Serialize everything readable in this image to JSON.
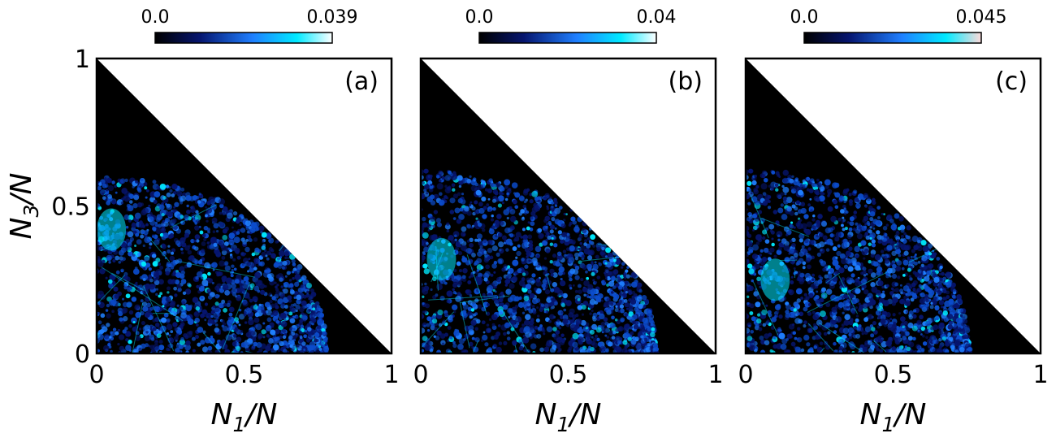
{
  "chart_data": [
    {
      "type": "heatmap",
      "panel_label": "(a)",
      "colorbar": {
        "min_label": "0.0",
        "max_label": "0.039",
        "min": 0.0,
        "max": 0.039,
        "colors": [
          "#000000",
          "#06156e",
          "#1f7fff",
          "#00eaff",
          "#ffffff"
        ]
      },
      "xlabel_main": "N",
      "xlabel_sub": "1",
      "xlabel_tail": "/N",
      "ylabel_main": "N",
      "ylabel_sub": "3",
      "ylabel_tail": "/N",
      "xticks": [
        "0",
        "0.5",
        "1"
      ],
      "yticks": [
        "0",
        "0.5",
        "1"
      ],
      "xlim": [
        0,
        1
      ],
      "ylim": [
        0,
        1
      ],
      "region": "N1/N + N3/N <= 1",
      "blob": {
        "max_n3": 0.6,
        "tip_n1": 0.78,
        "bright_spot": [
          0.05,
          0.42
        ]
      }
    },
    {
      "type": "heatmap",
      "panel_label": "(b)",
      "colorbar": {
        "min_label": "0.0",
        "max_label": "0.04",
        "min": 0.0,
        "max": 0.04,
        "colors": [
          "#000000",
          "#06156e",
          "#1f7fff",
          "#00eaff",
          "#ffffff"
        ]
      },
      "xlabel_main": "N",
      "xlabel_sub": "1",
      "xlabel_tail": "/N",
      "xticks": [
        "0",
        "0.5",
        "1"
      ],
      "xlim": [
        0,
        1
      ],
      "ylim": [
        0,
        1
      ],
      "region": "N1/N + N3/N <= 1",
      "blob": {
        "max_n3": 0.62,
        "tip_n1": 0.8,
        "bright_spot": [
          0.07,
          0.32
        ]
      }
    },
    {
      "type": "heatmap",
      "panel_label": "(c)",
      "colorbar": {
        "min_label": "0.0",
        "max_label": "0.045",
        "min": 0.0,
        "max": 0.045,
        "colors": [
          "#000000",
          "#06156e",
          "#1f7fff",
          "#00eaff",
          "#ffdada"
        ]
      },
      "xlabel_main": "N",
      "xlabel_sub": "1",
      "xlabel_tail": "/N",
      "xticks": [
        "0",
        "0.5",
        "1"
      ],
      "xlim": [
        0,
        1
      ],
      "ylim": [
        0,
        1
      ],
      "region": "N1/N + N3/N <= 1",
      "blob": {
        "max_n3": 0.62,
        "tip_n1": 0.76,
        "bright_spot": [
          0.1,
          0.25
        ]
      }
    }
  ]
}
